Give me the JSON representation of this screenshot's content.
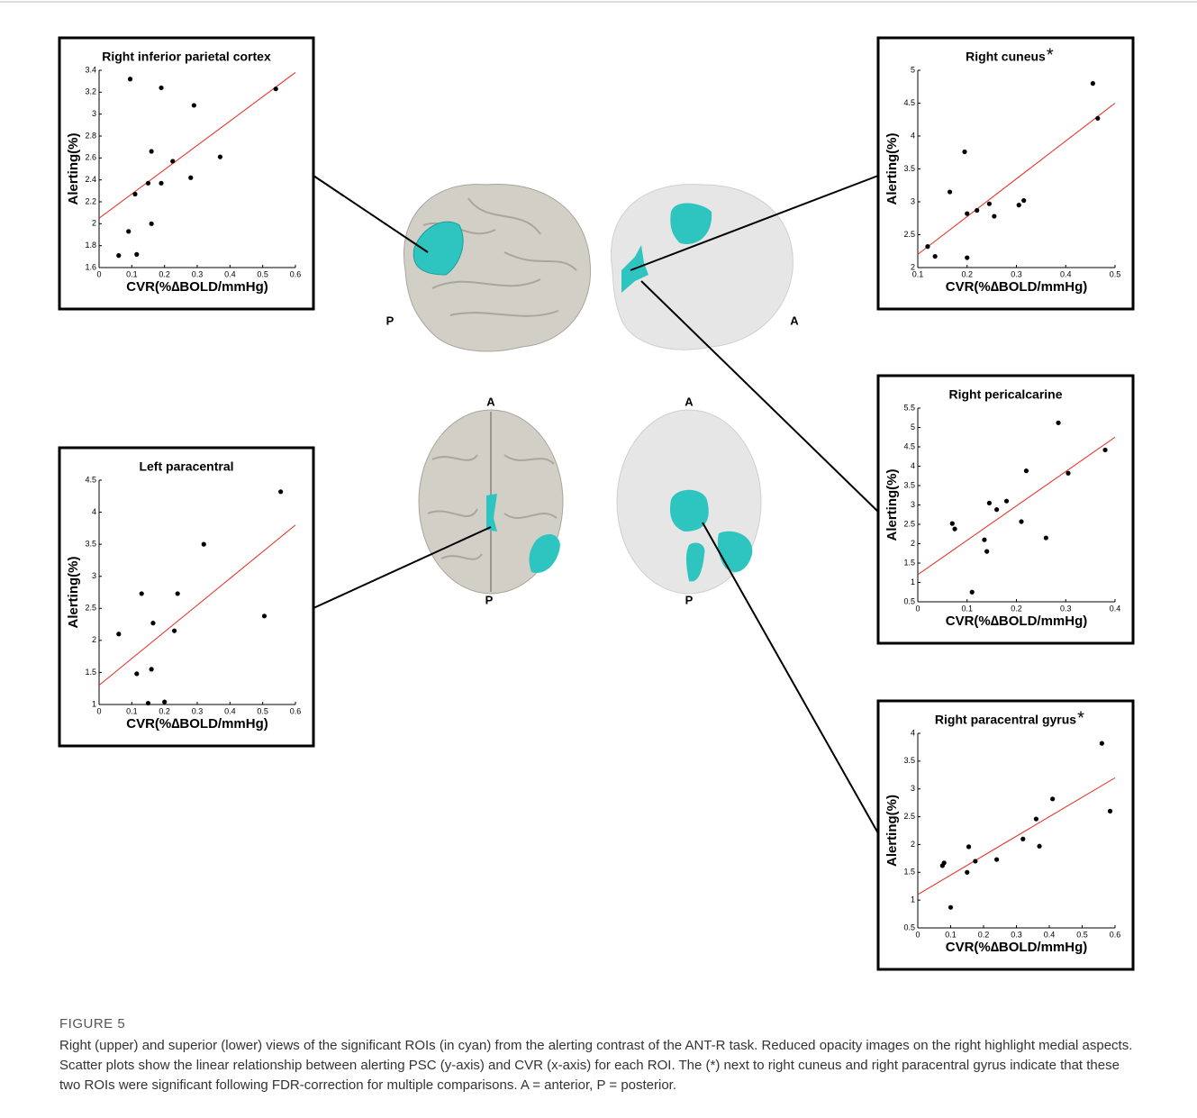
{
  "chart_data": [
    {
      "type": "scatter",
      "title": "Right inferior parietal cortex",
      "xlabel": "CVR(%∆BOLD/mmHg)",
      "ylabel": "Alerting(%)",
      "x": [
        0.095,
        0.19,
        0.29,
        0.54,
        0.16,
        0.225,
        0.37,
        0.15,
        0.19,
        0.28,
        0.11,
        0.16,
        0.09,
        0.06,
        0.115
      ],
      "values": [
        3.32,
        3.24,
        3.08,
        3.23,
        2.66,
        2.57,
        2.61,
        2.37,
        2.37,
        2.42,
        2.27,
        2.0,
        1.93,
        1.71,
        1.72
      ],
      "color": "#000000",
      "fit_line": {
        "x": [
          0,
          0.6
        ],
        "y": [
          2.05,
          3.38
        ],
        "color": "#e8281e"
      },
      "xlim": [
        0,
        0.6
      ],
      "ylim": [
        1.6,
        3.4
      ],
      "xticks": [
        0,
        0.1,
        0.2,
        0.3,
        0.4,
        0.5,
        0.6
      ],
      "yticks": [
        1.6,
        1.8,
        2,
        2.2,
        2.4,
        2.6,
        2.8,
        3,
        3.2,
        3.4
      ]
    },
    {
      "type": "scatter",
      "title": "Right cuneus",
      "title_mark": "*",
      "xlabel": "CVR(%∆BOLD/mmHg)",
      "ylabel": "Alerting(%)",
      "x": [
        0.12,
        0.135,
        0.165,
        0.195,
        0.2,
        0.2,
        0.22,
        0.245,
        0.255,
        0.305,
        0.315,
        0.455,
        0.465
      ],
      "values": [
        2.32,
        2.17,
        3.15,
        3.76,
        2.82,
        2.15,
        2.87,
        2.97,
        2.78,
        2.95,
        3.02,
        4.8,
        4.27
      ],
      "color": "#000000",
      "fit_line": {
        "x": [
          0.1,
          0.5
        ],
        "y": [
          2.2,
          4.5
        ],
        "color": "#e8281e"
      },
      "xlim": [
        0.1,
        0.5
      ],
      "ylim": [
        2,
        5
      ],
      "xticks": [
        0.1,
        0.2,
        0.3,
        0.4,
        0.5
      ],
      "yticks": [
        2,
        2.5,
        3,
        3.5,
        4,
        4.5,
        5
      ]
    },
    {
      "type": "scatter",
      "title": "Right pericalcarine",
      "xlabel": "CVR(%∆BOLD/mmHg)",
      "ylabel": "Alerting(%)",
      "x": [
        0.07,
        0.075,
        0.11,
        0.135,
        0.14,
        0.145,
        0.16,
        0.18,
        0.21,
        0.22,
        0.26,
        0.285,
        0.305,
        0.38
      ],
      "values": [
        2.52,
        2.38,
        0.75,
        2.1,
        1.8,
        3.05,
        2.88,
        3.1,
        2.57,
        3.88,
        2.15,
        5.12,
        3.82,
        4.42
      ],
      "color": "#000000",
      "fit_line": {
        "x": [
          0,
          0.4
        ],
        "y": [
          1.2,
          4.75
        ],
        "color": "#e8281e"
      },
      "xlim": [
        0,
        0.4
      ],
      "ylim": [
        0.5,
        5.5
      ],
      "xticks": [
        0,
        0.1,
        0.2,
        0.3,
        0.4
      ],
      "yticks": [
        0.5,
        1,
        1.5,
        2,
        2.5,
        3,
        3.5,
        4,
        4.5,
        5,
        5.5
      ]
    },
    {
      "type": "scatter",
      "title": "Left paracentral",
      "xlabel": "CVR(%∆BOLD/mmHg)",
      "ylabel": "Alerting(%)",
      "x": [
        0.06,
        0.13,
        0.115,
        0.15,
        0.165,
        0.16,
        0.2,
        0.23,
        0.24,
        0.32,
        0.505,
        0.555
      ],
      "values": [
        2.1,
        2.73,
        1.48,
        1.02,
        2.27,
        1.55,
        1.04,
        2.15,
        2.73,
        3.5,
        2.38,
        4.32
      ],
      "color": "#000000",
      "fit_line": {
        "x": [
          0,
          0.6
        ],
        "y": [
          1.3,
          3.8
        ],
        "color": "#e8281e"
      },
      "xlim": [
        0,
        0.6
      ],
      "ylim": [
        1,
        4.5
      ],
      "xticks": [
        0,
        0.1,
        0.2,
        0.3,
        0.4,
        0.5,
        0.6
      ],
      "yticks": [
        1,
        1.5,
        2,
        2.5,
        3,
        3.5,
        4,
        4.5
      ]
    },
    {
      "type": "scatter",
      "title": "Right paracentral gyrus",
      "title_mark": "*",
      "xlabel": "CVR(%∆BOLD/mmHg)",
      "ylabel": "Alerting(%)",
      "x": [
        0.075,
        0.08,
        0.1,
        0.15,
        0.155,
        0.175,
        0.24,
        0.32,
        0.36,
        0.37,
        0.41,
        0.56,
        0.585
      ],
      "values": [
        1.62,
        1.67,
        0.87,
        1.5,
        1.96,
        1.7,
        1.73,
        2.1,
        2.46,
        1.97,
        2.82,
        3.82,
        2.6
      ],
      "color": "#000000",
      "fit_line": {
        "x": [
          0,
          0.6
        ],
        "y": [
          1.1,
          3.2
        ],
        "color": "#e8281e"
      },
      "xlim": [
        0,
        0.6
      ],
      "ylim": [
        0.5,
        4
      ],
      "xticks": [
        0,
        0.1,
        0.2,
        0.3,
        0.4,
        0.5,
        0.6
      ],
      "yticks": [
        0.5,
        1,
        1.5,
        2,
        2.5,
        3,
        3.5,
        4
      ]
    }
  ],
  "orientation_labels": [
    "P",
    "A",
    "A",
    "P",
    "A",
    "P"
  ],
  "figure": {
    "label": "FIGURE 5",
    "caption": "Right (upper) and superior (lower) views of the significant ROIs (in cyan) from the alerting contrast of the ANT-R task. Reduced opacity images on the right highlight medial aspects. Scatter plots show the linear relationship between alerting PSC (y-axis) and CVR (x-axis) for each ROI. The (*) next to right cuneus and right paracentral gyrus indicate that these two ROIs were significant following FDR-correction for multiple comparisons. A = anterior, P = posterior."
  }
}
